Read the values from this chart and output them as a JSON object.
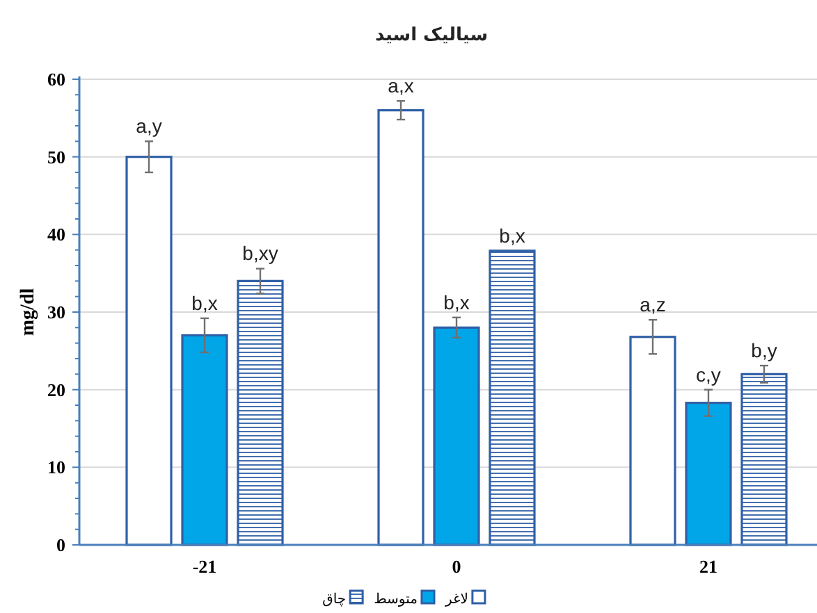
{
  "chart_data": {
    "type": "bar",
    "title": "سیالیک اسید",
    "ylabel": "mg/dl",
    "categories": [
      "-21",
      "0",
      "21"
    ],
    "series": [
      {
        "name": "لاغر",
        "color": "#ffffff",
        "values": [
          50,
          56,
          26.8
        ],
        "errors": [
          2,
          1.2,
          2.2
        ],
        "value_labels": [
          "a,y",
          "a,x",
          "a,z"
        ]
      },
      {
        "name": "متوسط",
        "color": "#00a6e8",
        "values": [
          27,
          28,
          18.3
        ],
        "errors": [
          2.2,
          1.3,
          1.7
        ],
        "value_labels": [
          "b,x",
          "b,x",
          "c,y"
        ]
      },
      {
        "name": "چاق",
        "color": "#2f5fa7",
        "values": [
          34,
          37.9,
          22
        ],
        "errors": [
          1.6,
          null,
          1.1
        ],
        "value_labels": [
          "b,xy",
          "b,x",
          "b,y"
        ]
      }
    ],
    "ylim": [
      0,
      60
    ],
    "yticks": [
      0,
      10,
      20,
      30,
      40,
      50,
      60
    ],
    "grid": "y",
    "legend": "bottom"
  }
}
